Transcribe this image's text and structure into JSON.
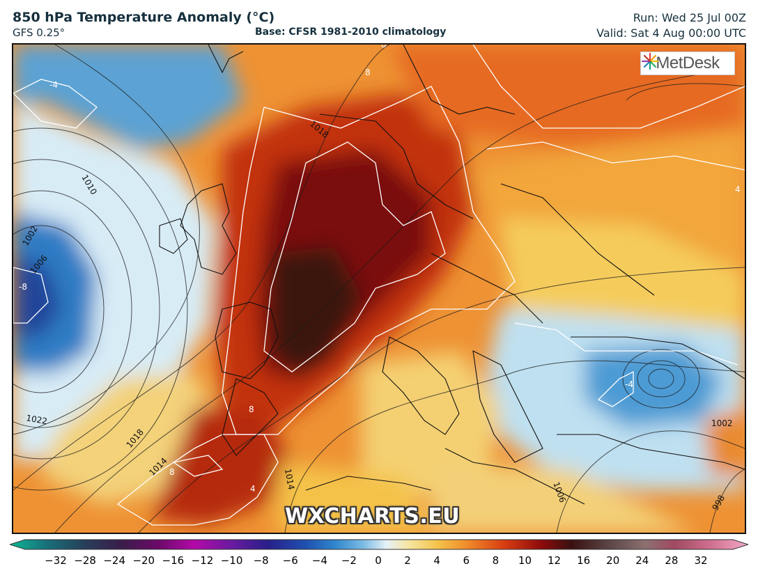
{
  "header": {
    "title": "850 hPa Temperature Anomaly (°C)",
    "model": "GFS 0.25°",
    "base": "Base: CFSR 1981-2010 climatology",
    "run": "Run: Wed 25 Jul 00Z",
    "valid": "Valid: Sat 4 Aug 00:00 UTC"
  },
  "logo": {
    "text": "MetDesk",
    "icon": "metdesk-star-icon"
  },
  "watermark": "WXCHARTS.EU",
  "colorbar": {
    "ticks": [
      "−32",
      "−28",
      "−24",
      "−20",
      "−16",
      "−12",
      "−10",
      "−8",
      "−6",
      "−4",
      "−2",
      "0",
      "2",
      "4",
      "6",
      "8",
      "10",
      "12",
      "16",
      "20",
      "24",
      "28",
      "32"
    ],
    "colors": [
      "#0fb894",
      "#18707a",
      "#26405a",
      "#3a1e4a",
      "#6a0a68",
      "#b30aa8",
      "#6a1aa0",
      "#28208a",
      "#1f4fb0",
      "#2f86cc",
      "#7fbde4",
      "#e6f1f7",
      "#f7e6a2",
      "#f4c24a",
      "#ef8a2a",
      "#d83c12",
      "#8e0c0c",
      "#3a1010",
      "#5a4444",
      "#8c7070",
      "#a04a62",
      "#d07090",
      "#f2aac8"
    ]
  },
  "map_labels": {
    "contours": [
      "1010",
      "1002",
      "1006",
      "1022",
      "1018",
      "1014",
      "1014",
      "1018",
      "1006",
      "1002",
      "998",
      "1022"
    ],
    "anomalies": [
      "-4",
      "-8",
      "8",
      "8",
      "8",
      "8",
      "4",
      "-4",
      "4"
    ]
  }
}
